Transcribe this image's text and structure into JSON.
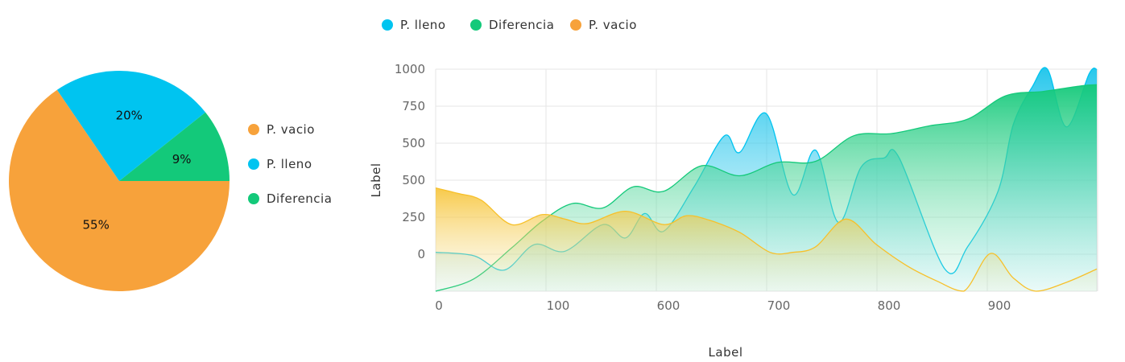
{
  "chart_data": [
    {
      "type": "pie",
      "slices": [
        {
          "name": "P. vacio",
          "value": 55,
          "label": "55%",
          "color": "#f7a23b"
        },
        {
          "name": "P. lleno",
          "value": 20,
          "label": "20%",
          "color": "#00c4f0"
        },
        {
          "name": "Diferencia",
          "value": 9,
          "label": "9%",
          "color": "#13c97a"
        }
      ],
      "legend": [
        "P. vacio",
        "P. lleno",
        "Diferencia"
      ],
      "legend_position": "right"
    },
    {
      "type": "area",
      "xlabel": "Label",
      "ylabel": "Label",
      "xticks": [
        "0",
        "100",
        "600",
        "700",
        "800",
        "900"
      ],
      "yticks": [
        "0",
        "250",
        "500",
        "500",
        "750",
        "1000"
      ],
      "ylim": [
        0,
        1000
      ],
      "grid": true,
      "legend_position": "top",
      "series": [
        {
          "name": "P. lleno",
          "color": "#00c4f0",
          "values": [
            [
              0,
              175
            ],
            [
              0.5,
              160
            ],
            [
              0.9,
              95
            ],
            [
              1.3,
              210
            ],
            [
              1.7,
              180
            ],
            [
              2.2,
              300
            ],
            [
              2.5,
              240
            ],
            [
              2.75,
              350
            ],
            [
              3.0,
              270
            ],
            [
              3.4,
              470
            ],
            [
              3.8,
              700
            ],
            [
              4.0,
              625
            ],
            [
              4.35,
              800
            ],
            [
              4.7,
              435
            ],
            [
              5.0,
              635
            ],
            [
              5.3,
              310
            ],
            [
              5.6,
              560
            ],
            [
              5.9,
              600
            ],
            [
              6.1,
              600
            ],
            [
              6.7,
              100
            ],
            [
              7.0,
              200
            ],
            [
              7.4,
              450
            ],
            [
              7.6,
              750
            ],
            [
              7.85,
              920
            ],
            [
              8.05,
              1000
            ],
            [
              8.3,
              740
            ],
            [
              8.6,
              980
            ],
            [
              8.7,
              1000
            ]
          ]
        },
        {
          "name": "Diferencia",
          "color": "#13c97a",
          "values": [
            [
              0,
              0
            ],
            [
              0.5,
              55
            ],
            [
              1.0,
              195
            ],
            [
              1.4,
              315
            ],
            [
              1.8,
              395
            ],
            [
              2.2,
              375
            ],
            [
              2.6,
              470
            ],
            [
              3.0,
              450
            ],
            [
              3.5,
              565
            ],
            [
              4.0,
              520
            ],
            [
              4.5,
              580
            ],
            [
              5.0,
              585
            ],
            [
              5.5,
              700
            ],
            [
              6.0,
              710
            ],
            [
              6.5,
              745
            ],
            [
              7.0,
              775
            ],
            [
              7.5,
              880
            ],
            [
              8.0,
              900
            ],
            [
              8.5,
              925
            ],
            [
              8.7,
              930
            ]
          ]
        },
        {
          "name": "P. vacio",
          "color": "#f7c02a",
          "values": [
            [
              0,
              465
            ],
            [
              0.3,
              440
            ],
            [
              0.6,
              410
            ],
            [
              1.0,
              300
            ],
            [
              1.4,
              345
            ],
            [
              1.7,
              325
            ],
            [
              2.0,
              305
            ],
            [
              2.5,
              360
            ],
            [
              3.0,
              300
            ],
            [
              3.3,
              340
            ],
            [
              3.6,
              320
            ],
            [
              4.0,
              265
            ],
            [
              4.4,
              175
            ],
            [
              4.7,
              175
            ],
            [
              5.0,
              200
            ],
            [
              5.4,
              325
            ],
            [
              5.8,
              210
            ],
            [
              6.2,
              115
            ],
            [
              6.6,
              45
            ],
            [
              6.95,
              0
            ],
            [
              7.3,
              170
            ],
            [
              7.6,
              60
            ],
            [
              7.9,
              0
            ],
            [
              8.3,
              40
            ],
            [
              8.7,
              100
            ]
          ]
        }
      ],
      "legend": [
        "P. lleno",
        "Diferencia",
        "P. vacio"
      ]
    }
  ]
}
